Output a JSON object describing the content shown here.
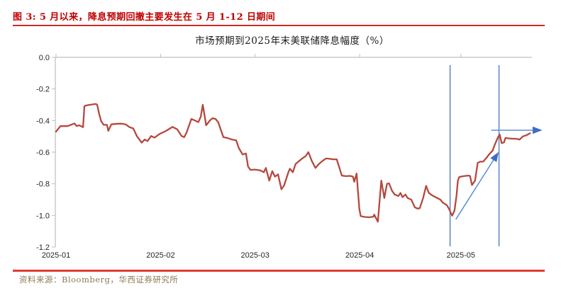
{
  "header": {
    "title": "图 3: 5 月以来，降息预期回撤主要发生在 5 月 1-12 日期间"
  },
  "footer": {
    "source": "资料来源：Bloomberg，华西证券研究所"
  },
  "colors": {
    "title_red": "#C00000",
    "rule_red": "#D93A32",
    "series_red": "#B5483E",
    "vline_blue": "#4F7DC4",
    "arrow_shaft_blue": "#5E8DD3",
    "arrow_head_blue": "#3C6EC5",
    "axis_gray": "#BFBFBF",
    "tick_label_color": "#262626"
  },
  "chart_data": {
    "type": "line",
    "title": "市场预期到2025年末美联储降息幅度（%）",
    "x_unit": "days since 2025-01-01",
    "grid": false,
    "legend": false,
    "x_axis": {
      "tick_labels": [
        "2025-01",
        "2025-02",
        "2025-03",
        "2025-04",
        "2025-05"
      ],
      "tick_days": [
        0,
        31,
        59,
        90,
        120
      ],
      "range_days": [
        0,
        141
      ]
    },
    "y_axis": {
      "tick_labels": [
        "0.0",
        "-0.2",
        "-0.4",
        "-0.6",
        "-0.8",
        "-1.0",
        "-1.2"
      ],
      "tick_values": [
        0,
        -0.2,
        -0.4,
        -0.6,
        -0.8,
        -1.0,
        -1.2
      ],
      "range": [
        -1.2,
        0
      ]
    },
    "series": [
      {
        "name": "市场预期到2025年末美联储降息幅度（%）",
        "points": [
          [
            0,
            -0.47
          ],
          [
            1.3,
            -0.435
          ],
          [
            3.4,
            -0.435
          ],
          [
            5.5,
            -0.418
          ],
          [
            6.1,
            -0.435
          ],
          [
            6.9,
            -0.43
          ],
          [
            8,
            -0.442
          ],
          [
            8.4,
            -0.31
          ],
          [
            8.8,
            -0.305
          ],
          [
            10.1,
            -0.3
          ],
          [
            11.8,
            -0.295
          ],
          [
            12.2,
            -0.3
          ],
          [
            12.8,
            -0.36
          ],
          [
            13.4,
            -0.405
          ],
          [
            14.1,
            -0.427
          ],
          [
            15.1,
            -0.427
          ],
          [
            15.5,
            -0.465
          ],
          [
            16.4,
            -0.424
          ],
          [
            18.3,
            -0.42
          ],
          [
            19.5,
            -0.42
          ],
          [
            20.6,
            -0.424
          ],
          [
            21.8,
            -0.442
          ],
          [
            22.9,
            -0.45
          ],
          [
            24,
            -0.5
          ],
          [
            25.4,
            -0.54
          ],
          [
            26.3,
            -0.52
          ],
          [
            27.1,
            -0.53
          ],
          [
            28.2,
            -0.498
          ],
          [
            29.2,
            -0.508
          ],
          [
            30.7,
            -0.485
          ],
          [
            32.4,
            -0.468
          ],
          [
            33.4,
            -0.455
          ],
          [
            34.5,
            -0.44
          ],
          [
            35.9,
            -0.455
          ],
          [
            37.2,
            -0.498
          ],
          [
            38,
            -0.505
          ],
          [
            38.7,
            -0.475
          ],
          [
            40.1,
            -0.39
          ],
          [
            41.2,
            -0.4
          ],
          [
            42.2,
            -0.41
          ],
          [
            42.9,
            -0.375
          ],
          [
            43.5,
            -0.3
          ],
          [
            44.5,
            -0.43
          ],
          [
            45.6,
            -0.4
          ],
          [
            46.4,
            -0.385
          ],
          [
            47.3,
            -0.39
          ],
          [
            48.1,
            -0.412
          ],
          [
            49.6,
            -0.505
          ],
          [
            51,
            -0.512
          ],
          [
            52.1,
            -0.52
          ],
          [
            53.4,
            -0.525
          ],
          [
            54.2,
            -0.575
          ],
          [
            55.3,
            -0.615
          ],
          [
            56.3,
            -0.608
          ],
          [
            56.9,
            -0.69
          ],
          [
            57.6,
            -0.712
          ],
          [
            59,
            -0.71
          ],
          [
            60.5,
            -0.715
          ],
          [
            61.6,
            -0.727
          ],
          [
            62.2,
            -0.7
          ],
          [
            63.2,
            -0.78
          ],
          [
            64.1,
            -0.72
          ],
          [
            64.9,
            -0.755
          ],
          [
            65.8,
            -0.74
          ],
          [
            66.8,
            -0.835
          ],
          [
            67.6,
            -0.81
          ],
          [
            68.9,
            -0.725
          ],
          [
            69.3,
            -0.705
          ],
          [
            70.2,
            -0.727
          ],
          [
            71,
            -0.675
          ],
          [
            72.1,
            -0.655
          ],
          [
            73.1,
            -0.638
          ],
          [
            74,
            -0.625
          ],
          [
            74.8,
            -0.6
          ],
          [
            75.8,
            -0.655
          ],
          [
            76.9,
            -0.7
          ],
          [
            77.9,
            -0.675
          ],
          [
            79,
            -0.655
          ],
          [
            80,
            -0.64
          ],
          [
            81.1,
            -0.642
          ],
          [
            82.1,
            -0.645
          ],
          [
            83.2,
            -0.645
          ],
          [
            84,
            -0.7
          ],
          [
            84.7,
            -0.748
          ],
          [
            85.9,
            -0.752
          ],
          [
            87.2,
            -0.75
          ],
          [
            88,
            -0.755
          ],
          [
            88.4,
            -0.787
          ],
          [
            89.1,
            -0.735
          ],
          [
            89.9,
            -0.96
          ],
          [
            90.3,
            -1.005
          ],
          [
            91.6,
            -1.01
          ],
          [
            92.9,
            -1.012
          ],
          [
            94.1,
            -1.008
          ],
          [
            94.3,
            -0.995
          ],
          [
            95.4,
            -1.04
          ],
          [
            96.4,
            -0.78
          ],
          [
            97.3,
            -0.89
          ],
          [
            98.1,
            -0.8
          ],
          [
            98.7,
            -0.797
          ],
          [
            99.6,
            -0.845
          ],
          [
            100.4,
            -0.868
          ],
          [
            101.5,
            -0.877
          ],
          [
            102.1,
            -0.858
          ],
          [
            102.7,
            -0.885
          ],
          [
            103.6,
            -0.868
          ],
          [
            104.2,
            -0.89
          ],
          [
            105.3,
            -0.9
          ],
          [
            106.3,
            -0.948
          ],
          [
            107.1,
            -0.957
          ],
          [
            107.8,
            -0.955
          ],
          [
            108.8,
            -0.89
          ],
          [
            109.7,
            -0.813
          ],
          [
            110.5,
            -0.858
          ],
          [
            111.6,
            -0.875
          ],
          [
            113,
            -0.89
          ],
          [
            113.9,
            -0.9
          ],
          [
            114.7,
            -0.92
          ],
          [
            115.8,
            -0.935
          ],
          [
            116.4,
            -0.955
          ],
          [
            117.4,
            -1.002
          ],
          [
            118.1,
            -0.97
          ],
          [
            118.7,
            -0.875
          ],
          [
            119.1,
            -0.78
          ],
          [
            119.5,
            -0.757
          ],
          [
            120.8,
            -0.752
          ],
          [
            122.1,
            -0.748
          ],
          [
            122.7,
            -0.75
          ],
          [
            123.3,
            -0.808
          ],
          [
            124.2,
            -0.78
          ],
          [
            125,
            -0.667
          ],
          [
            125.8,
            -0.66
          ],
          [
            126.6,
            -0.66
          ],
          [
            127.5,
            -0.638
          ],
          [
            128.4,
            -0.613
          ],
          [
            129.4,
            -0.59
          ],
          [
            130,
            -0.555
          ],
          [
            130.9,
            -0.51
          ],
          [
            131.5,
            -0.488
          ],
          [
            132.1,
            -0.543
          ],
          [
            132.8,
            -0.538
          ],
          [
            133.2,
            -0.51
          ],
          [
            134.3,
            -0.513
          ],
          [
            135.3,
            -0.515
          ],
          [
            136.3,
            -0.515
          ],
          [
            137.4,
            -0.52
          ],
          [
            138.4,
            -0.5
          ],
          [
            139.5,
            -0.492
          ],
          [
            140.5,
            -0.48
          ]
        ]
      }
    ],
    "annotations": {
      "vlines": [
        {
          "x_day": 116.8
        },
        {
          "x_day": 131.3
        }
      ],
      "arrows": [
        {
          "type": "diagonal-up",
          "from": {
            "x_day": 118.5,
            "value": -1.025
          },
          "to": {
            "x_day": 131.0,
            "value": -0.605
          }
        },
        {
          "type": "horizontal-right",
          "from": {
            "x_day": 129.0,
            "value": -0.461
          },
          "to": {
            "x_day": 143.8,
            "value": -0.461
          }
        }
      ]
    }
  }
}
